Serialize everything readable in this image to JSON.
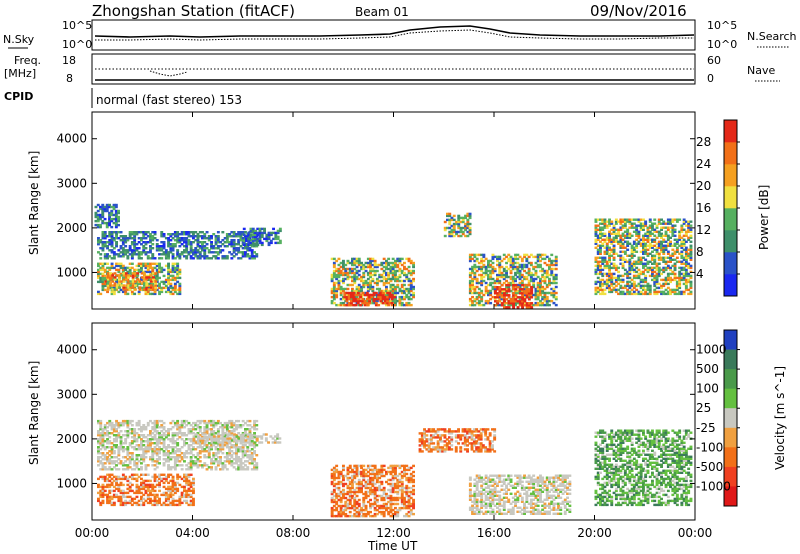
{
  "header": {
    "station": "Zhongshan Station (fitACF)",
    "beam": "Beam 01",
    "date": "09/Nov/2016"
  },
  "noise_panel": {
    "left_label": "N.Sky",
    "right_label": "N.Search",
    "left_ticks": [
      "10^5",
      "10^0"
    ],
    "right_ticks": [
      "10^5",
      "10^0"
    ]
  },
  "freq_panel": {
    "left_label_line1": "Freq.",
    "left_label_line2": "[MHz]",
    "right_label": "Nave",
    "left_ticks": [
      "18",
      "8"
    ],
    "right_ticks": [
      "60",
      "0"
    ]
  },
  "cpid_panel": {
    "label": "CPID",
    "mode_text": "normal (fast stereo) 153"
  },
  "time_axis": {
    "label": "Time UT",
    "ticks": [
      "00:00",
      "04:00",
      "08:00",
      "12:00",
      "16:00",
      "20:00",
      "00:00"
    ]
  },
  "chart_data": [
    {
      "type": "heatmap",
      "title": "Power",
      "xlabel": "Time UT",
      "ylabel": "Slant Range [km]",
      "xlim": [
        0,
        24
      ],
      "ylim": [
        180,
        4600
      ],
      "yticks": [
        "1000",
        "2000",
        "3000",
        "4000"
      ],
      "colorbar": {
        "label": "Power [dB]",
        "ticks": [
          "4",
          "8",
          "12",
          "16",
          "20",
          "24",
          "28"
        ],
        "colors": [
          "#1a28f0",
          "#2a52c8",
          "#3e8f6a",
          "#56b060",
          "#f0e040",
          "#f5a020",
          "#f27018",
          "#e42818"
        ]
      },
      "regions": [
        {
          "t0": 0.1,
          "t1": 1.0,
          "r0": 2000,
          "r1": 2500,
          "level": "low"
        },
        {
          "t0": 0.2,
          "t1": 6.5,
          "r0": 1300,
          "r1": 1900,
          "level": "low"
        },
        {
          "t0": 0.2,
          "t1": 3.5,
          "r0": 500,
          "r1": 1200,
          "level": "mid"
        },
        {
          "t0": 0.5,
          "t1": 2.5,
          "r0": 600,
          "r1": 1000,
          "level": "high"
        },
        {
          "t0": 6.0,
          "t1": 7.5,
          "r0": 1600,
          "r1": 2000,
          "level": "low"
        },
        {
          "t0": 9.5,
          "t1": 12.8,
          "r0": 250,
          "r1": 1300,
          "level": "mid"
        },
        {
          "t0": 10.0,
          "t1": 12.0,
          "r0": 250,
          "r1": 550,
          "level": "peak"
        },
        {
          "t0": 14.0,
          "t1": 15.0,
          "r0": 1800,
          "r1": 2300,
          "level": "mid"
        },
        {
          "t0": 15.0,
          "t1": 18.5,
          "r0": 250,
          "r1": 1400,
          "level": "mid"
        },
        {
          "t0": 16.0,
          "t1": 17.5,
          "r0": 200,
          "r1": 700,
          "level": "peak"
        },
        {
          "t0": 20.0,
          "t1": 23.8,
          "r0": 500,
          "r1": 2200,
          "level": "mid"
        }
      ]
    },
    {
      "type": "heatmap",
      "title": "Velocity",
      "xlabel": "Time UT",
      "ylabel": "Slant Range [km]",
      "xlim": [
        0,
        24
      ],
      "ylim": [
        180,
        4600
      ],
      "yticks": [
        "1000",
        "2000",
        "3000",
        "4000"
      ],
      "colorbar": {
        "label": "Velocity [m s^-1]",
        "ticks": [
          "1000",
          "500",
          "100",
          "25",
          "-25",
          "-100",
          "-500",
          "-1000"
        ],
        "colors": [
          "#2040c0",
          "#3a7a5a",
          "#4a9a4a",
          "#64c040",
          "#c8c8c0",
          "#f0a040",
          "#f27018",
          "#f04020",
          "#e01818"
        ]
      },
      "regions": [
        {
          "t0": 0.2,
          "t1": 6.5,
          "r0": 1300,
          "r1": 2400,
          "level": "ground"
        },
        {
          "t0": 0.2,
          "t1": 4.0,
          "r0": 500,
          "r1": 1200,
          "level": "away"
        },
        {
          "t0": 4.0,
          "t1": 7.5,
          "r0": 1900,
          "r1": 2100,
          "level": "ground"
        },
        {
          "t0": 9.5,
          "t1": 12.8,
          "r0": 250,
          "r1": 1400,
          "level": "away"
        },
        {
          "t0": 13.0,
          "t1": 16.0,
          "r0": 1700,
          "r1": 2200,
          "level": "away"
        },
        {
          "t0": 15.0,
          "t1": 19.0,
          "r0": 300,
          "r1": 1200,
          "level": "ground"
        },
        {
          "t0": 20.0,
          "t1": 23.8,
          "r0": 500,
          "r1": 2200,
          "level": "toward"
        }
      ]
    }
  ]
}
